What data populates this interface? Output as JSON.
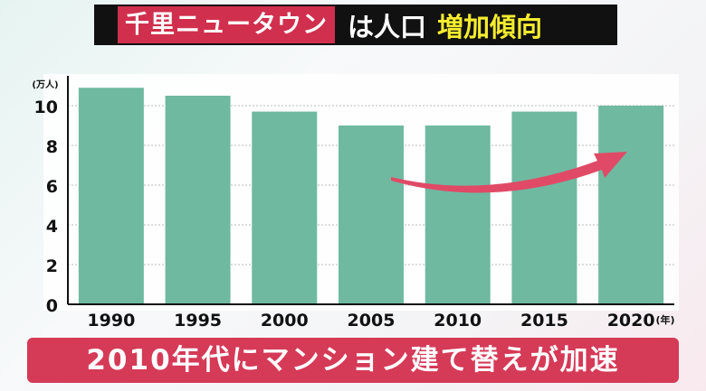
{
  "title": {
    "highlight": "千里ニュータウン",
    "middle": "は人口",
    "accent": "増加傾向"
  },
  "caption": "2010年代にマンション建て替えが加速",
  "colors": {
    "bar": "#6fb9a1",
    "arrow": "#e04a66",
    "banner": "#d53a57"
  },
  "chart_data": {
    "type": "bar",
    "categories": [
      "1990",
      "1995",
      "2000",
      "2005",
      "2010",
      "2015",
      "2020"
    ],
    "values": [
      10.9,
      10.5,
      9.7,
      9.0,
      9.0,
      9.7,
      10.0
    ],
    "ylabel": "(万人)",
    "xlabel": "(年)",
    "ylim": [
      0,
      10
    ],
    "yticks": [
      "0",
      "2",
      "4",
      "6",
      "8",
      "10"
    ],
    "grid": true,
    "annotation": "upward arrow from 2005 to 2020"
  }
}
